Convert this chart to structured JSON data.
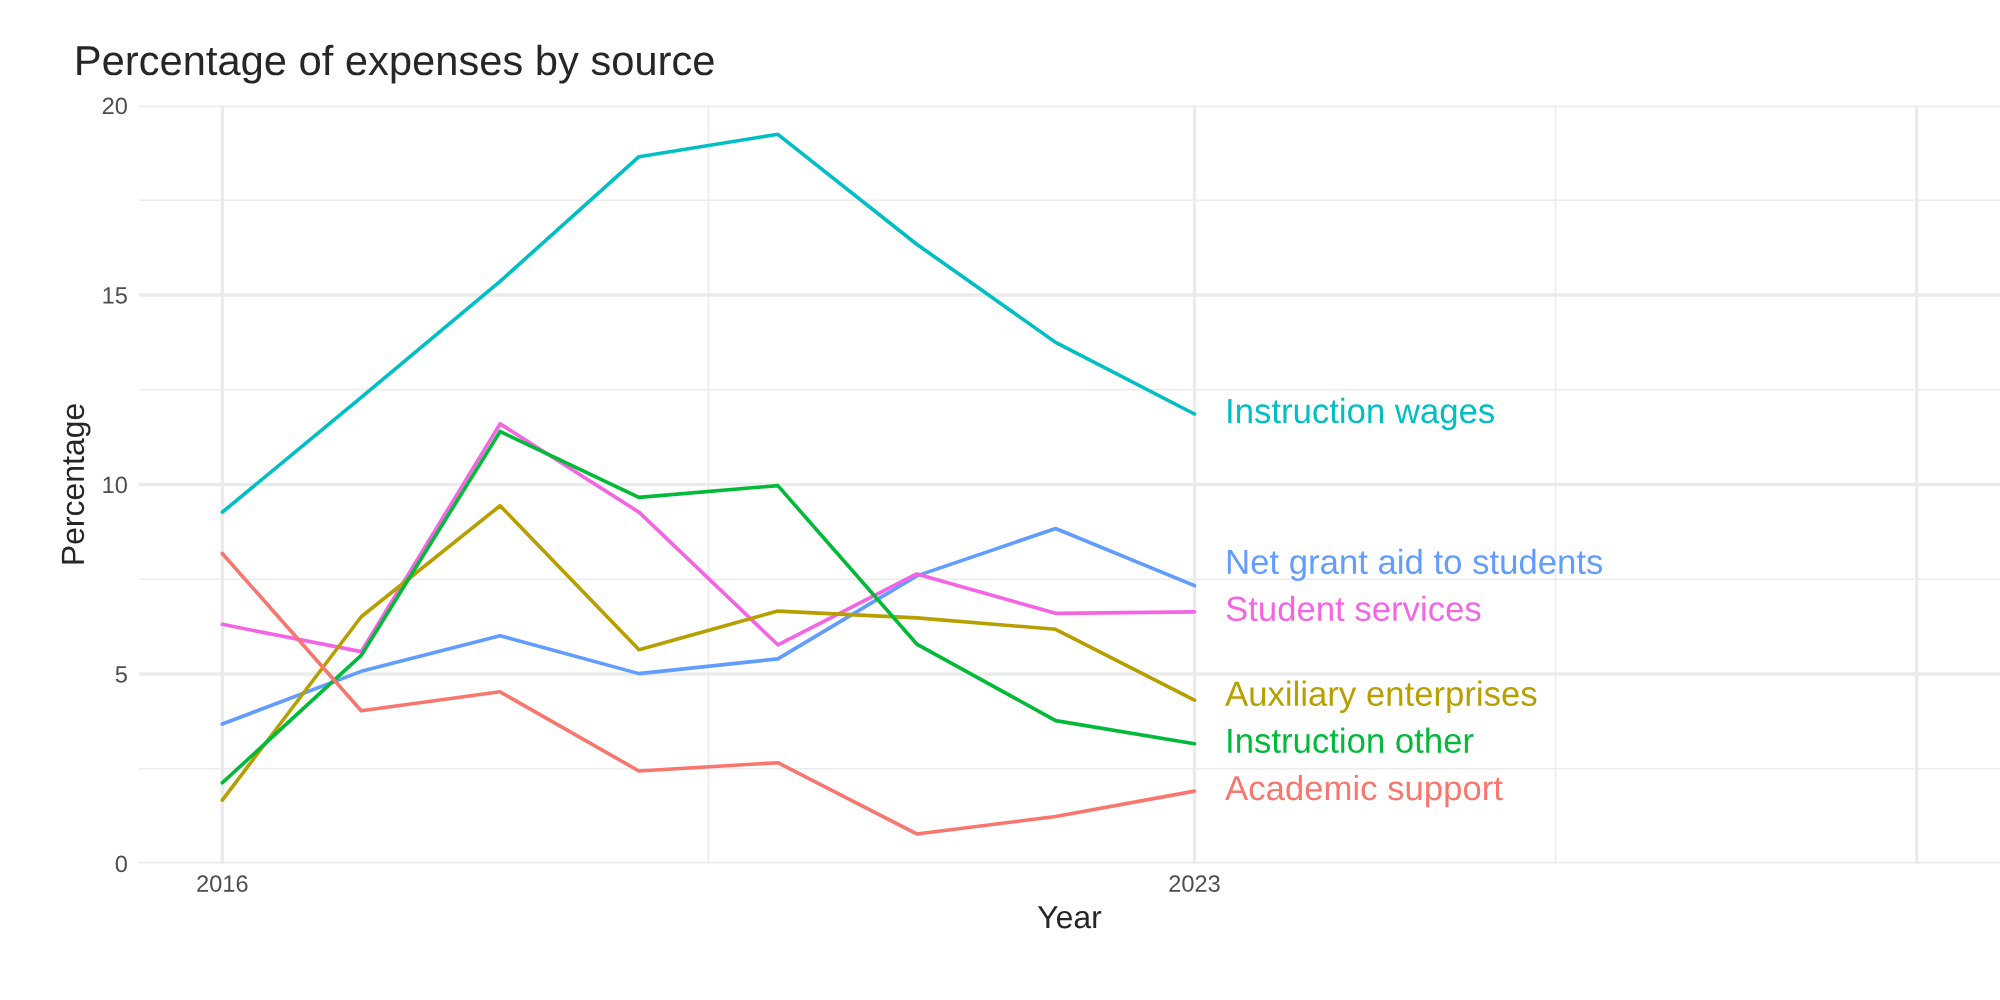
{
  "chart_data": {
    "type": "line",
    "title": "Percentage of expenses by source",
    "xlabel": "Year",
    "ylabel": "Percentage",
    "x": [
      2016,
      2017,
      2018,
      2019,
      2020,
      2021,
      2022,
      2023
    ],
    "series": [
      {
        "name": "Instruction wages",
        "color": "#00bfc4",
        "values": [
          9.27,
          12.3,
          15.36,
          18.65,
          19.24,
          16.34,
          13.75,
          11.86
        ]
      },
      {
        "name": "Net grant aid to students",
        "color": "#619cff",
        "values": [
          3.68,
          5.07,
          6.01,
          5.01,
          5.4,
          7.59,
          8.84,
          7.33
        ]
      },
      {
        "name": "Student services",
        "color": "#f564e3",
        "values": [
          6.31,
          5.59,
          11.6,
          9.27,
          5.77,
          7.64,
          6.6,
          6.64
        ]
      },
      {
        "name": "Auxiliary enterprises",
        "color": "#b79f00",
        "values": [
          1.67,
          6.51,
          9.44,
          5.64,
          6.66,
          6.48,
          6.18,
          4.31
        ]
      },
      {
        "name": "Instruction other",
        "color": "#00ba38",
        "values": [
          2.13,
          5.49,
          11.4,
          9.66,
          9.97,
          5.79,
          3.77,
          3.16
        ]
      },
      {
        "name": "Academic support",
        "color": "#f8766d",
        "values": [
          8.18,
          4.03,
          4.53,
          2.44,
          2.66,
          0.78,
          1.24,
          1.91
        ]
      }
    ],
    "xlim": [
      2015.4,
      2028.8
    ],
    "xticks": [
      2016,
      2023,
      {
        "value": 2028.2,
        "label": null
      }
    ],
    "ylim": [
      0,
      20
    ],
    "yticks": [
      0,
      5,
      10,
      15,
      20
    ],
    "grid": true,
    "legend": false
  }
}
